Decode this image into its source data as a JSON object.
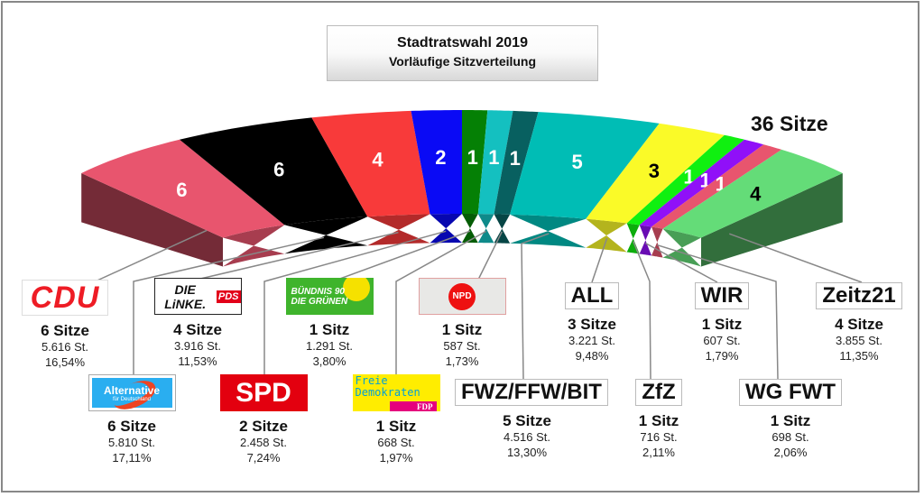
{
  "title": {
    "line1": "Stadtratswahl 2019",
    "line2": "Vorläufige Sitzverteilung"
  },
  "total_label": "36 Sitze",
  "chart_data": {
    "type": "pie",
    "subtype": "parliament-arc",
    "title": "Stadtratswahl 2019 – Vorläufige Sitzverteilung",
    "total_seats": 36,
    "segments": [
      {
        "party": "CDU",
        "seats": 6,
        "votes": "5.616 St.",
        "percent": "16,54%",
        "seats_label": "6 Sitze",
        "color": "#e8556e"
      },
      {
        "party": "AfD",
        "seats": 6,
        "votes": "5.810 St.",
        "percent": "17,11%",
        "seats_label": "6 Sitze",
        "color": "#000000"
      },
      {
        "party": "DIE LINKE.PDS",
        "seats": 4,
        "votes": "3.916 St.",
        "percent": "11,53%",
        "seats_label": "4 Sitze",
        "color": "#f83a3a"
      },
      {
        "party": "SPD",
        "seats": 2,
        "votes": "2.458 St.",
        "percent": "7,24%",
        "seats_label": "2 Sitze",
        "color": "#0a0af5"
      },
      {
        "party": "Bündnis 90 / Die Grünen",
        "seats": 1,
        "votes": "1.291 St.",
        "percent": "3,80%",
        "seats_label": "1 Sitz",
        "color": "#058005"
      },
      {
        "party": "FDP",
        "seats": 1,
        "votes": "668 St.",
        "percent": "1,97%",
        "seats_label": "1 Sitz",
        "color": "#14c0c0"
      },
      {
        "party": "NPD",
        "seats": 1,
        "votes": "587 St.",
        "percent": "1,73%",
        "seats_label": "1 Sitz",
        "color": "#086060"
      },
      {
        "party": "FWZ/FFW/BIT",
        "seats": 5,
        "votes": "4.516 St.",
        "percent": "13,30%",
        "seats_label": "5 Sitze",
        "color": "#00bdb5"
      },
      {
        "party": "ALL",
        "seats": 3,
        "votes": "3.221 St.",
        "percent": "9,48%",
        "seats_label": "3 Sitze",
        "color": "#fafa28"
      },
      {
        "party": "ZfZ",
        "seats": 1,
        "votes": "716 St.",
        "percent": "2,11%",
        "seats_label": "1 Sitz",
        "color": "#10f010"
      },
      {
        "party": "WIR",
        "seats": 1,
        "votes": "607 St.",
        "percent": "1,79%",
        "seats_label": "1 Sitz",
        "color": "#9010f8"
      },
      {
        "party": "WG FWT",
        "seats": 1,
        "votes": "698 St.",
        "percent": "2,06%",
        "seats_label": "1 Sitz",
        "color": "#e8556e"
      },
      {
        "party": "Zeitz21",
        "seats": 4,
        "votes": "3.855 St.",
        "percent": "11,35%",
        "seats_label": "4 Sitze",
        "color": "#64dc78"
      }
    ]
  },
  "logos": {
    "cdu": "CDU",
    "linke": "DIE LiNKE.",
    "linke_pds": "PDS",
    "gruene1": "BÜNDNIS 90",
    "gruene2": "DIE GRÜNEN",
    "npd": "NPD",
    "afd1": "Alternative",
    "afd2": "für Deutschland",
    "spd": "SPD",
    "fdp1": "Freie",
    "fdp2": "Demokraten",
    "fdp3": "FDP",
    "fwz": "FWZ/FFW/BIT",
    "all": "ALL",
    "zfz": "ZfZ",
    "wir": "WIR",
    "wgfwt": "WG FWT",
    "zeitz21": "Zeitz21"
  }
}
